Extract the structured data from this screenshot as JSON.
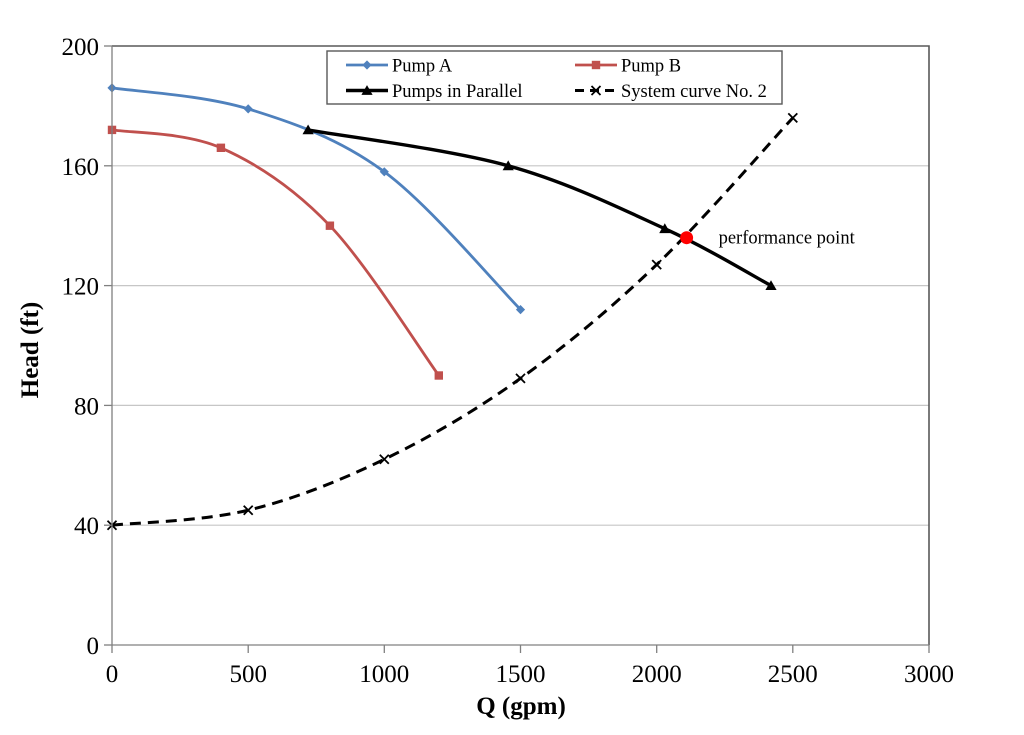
{
  "chart_data": {
    "type": "line",
    "title": "",
    "xlabel": "Q (gpm)",
    "ylabel": "Head (ft)",
    "xlim": [
      0,
      3000
    ],
    "ylim": [
      0,
      200
    ],
    "xticks": [
      0,
      500,
      1000,
      1500,
      2000,
      2500,
      3000
    ],
    "yticks": [
      0,
      40,
      80,
      120,
      160,
      200
    ],
    "grid": "horizontal",
    "legend_position": "top-center-boxed-2col",
    "series": [
      {
        "name": "Pump A",
        "color": "#4f81bd",
        "marker": "diamond",
        "line": "solid",
        "x": [
          0,
          500,
          1000,
          1500
        ],
        "y": [
          186,
          179,
          158,
          112
        ]
      },
      {
        "name": "Pump B",
        "color": "#c0504d",
        "marker": "square",
        "line": "solid",
        "x": [
          0,
          400,
          800,
          1200
        ],
        "y": [
          172,
          166,
          140,
          90
        ]
      },
      {
        "name": "Pumps in Parallel",
        "color": "#000000",
        "marker": "triangle",
        "line": "solid",
        "x": [
          720,
          1455,
          2030,
          2420
        ],
        "y": [
          172,
          160,
          139,
          120
        ]
      },
      {
        "name": "System curve No. 2",
        "color": "#000000",
        "marker": "x",
        "line": "dashed",
        "x": [
          0,
          500,
          1000,
          1500,
          2000,
          2500
        ],
        "y": [
          40,
          45,
          62,
          89,
          127,
          176
        ]
      }
    ],
    "annotation": {
      "label": "performance point",
      "x": 2110,
      "y": 136,
      "dot_color": "#ff0000"
    },
    "colors": {
      "grid": "#c6c6c6",
      "axis": "#808080",
      "border": "#595959",
      "text": "#000000",
      "background": "#ffffff"
    }
  }
}
